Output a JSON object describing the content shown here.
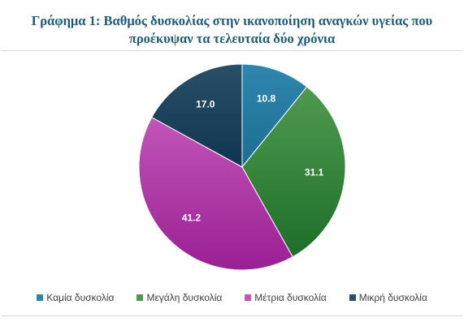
{
  "chart_data": {
    "type": "pie",
    "title_lines": [
      "Γράφημα 1: Βαθμός δυσκολίας στην ικανοποίηση αναγκών υγείας που",
      "προέκυψαν τα τελευταία δύο χρόνια"
    ],
    "slices": [
      {
        "label": "Καμία δυσκολία",
        "value": 10.8,
        "value_label": "10.8",
        "color": "#1b6e93",
        "color_light": "#2f86ad"
      },
      {
        "label": "Μεγάλη δυσκολία",
        "value": 31.1,
        "value_label": "31.1",
        "color": "#1e6e2a",
        "color_light": "#4f9a4f"
      },
      {
        "label": "Μέτρια δυσκολία",
        "value": 41.2,
        "value_label": "41.2",
        "color": "#9b1f94",
        "color_light": "#c155b8"
      },
      {
        "label": "Μικρή δυσκολία",
        "value": 17.0,
        "value_label": "17.0",
        "color": "#0f3550",
        "color_light": "#2a4f68"
      }
    ],
    "start_angle_deg": 0,
    "direction": "clockwise",
    "label_color": "#ffffff",
    "legend_position": "bottom"
  }
}
